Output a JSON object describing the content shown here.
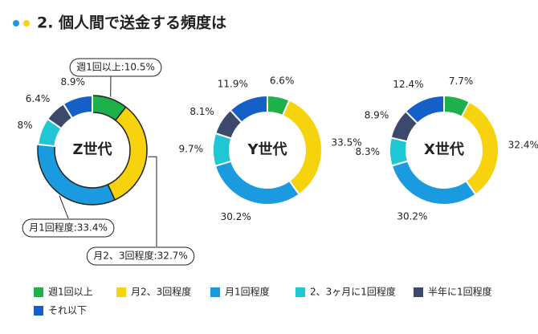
{
  "title": "2. 個人間で送金する頻度は",
  "chart_data": [
    {
      "type": "pie",
      "title": "Z世代",
      "categories": [
        "週1回以上",
        "月2、3回程度",
        "月1回程度",
        "2、3ヶ月に1回程度",
        "半年に1回程度",
        "それ以下"
      ],
      "colors": [
        "#1db04b",
        "#f6d30c",
        "#1a9be0",
        "#20c6d4",
        "#3b4a6c",
        "#1460c8"
      ],
      "values": [
        10.5,
        32.7,
        33.4,
        8,
        6.4,
        8.9
      ],
      "value_labels": [
        "週1回以上:10.5%",
        "月2、3回程度:32.7%",
        "月1回程度:33.4%",
        "8%",
        "6.4%",
        "8.9%"
      ]
    },
    {
      "type": "pie",
      "title": "Y世代",
      "categories": [
        "週1回以上",
        "月2、3回程度",
        "月1回程度",
        "2、3ヶ月に1回程度",
        "半年に1回程度",
        "それ以下"
      ],
      "colors": [
        "#1db04b",
        "#f6d30c",
        "#1a9be0",
        "#20c6d4",
        "#3b4a6c",
        "#1460c8"
      ],
      "values": [
        6.6,
        33.5,
        30.2,
        9.7,
        8.1,
        11.9
      ],
      "value_labels": [
        "6.6%",
        "33.5%",
        "30.2%",
        "9.7%",
        "8.1%",
        "11.9%"
      ]
    },
    {
      "type": "pie",
      "title": "X世代",
      "categories": [
        "週1回以上",
        "月2、3回程度",
        "月1回程度",
        "2、3ヶ月に1回程度",
        "半年に1回程度",
        "それ以下"
      ],
      "colors": [
        "#1db04b",
        "#f6d30c",
        "#1a9be0",
        "#20c6d4",
        "#3b4a6c",
        "#1460c8"
      ],
      "values": [
        7.7,
        32.4,
        30.2,
        8.3,
        8.9,
        12.4
      ],
      "value_labels": [
        "7.7%",
        "32.4%",
        "30.2%",
        "8.3%",
        "8.9%",
        "12.4%"
      ]
    }
  ]
}
